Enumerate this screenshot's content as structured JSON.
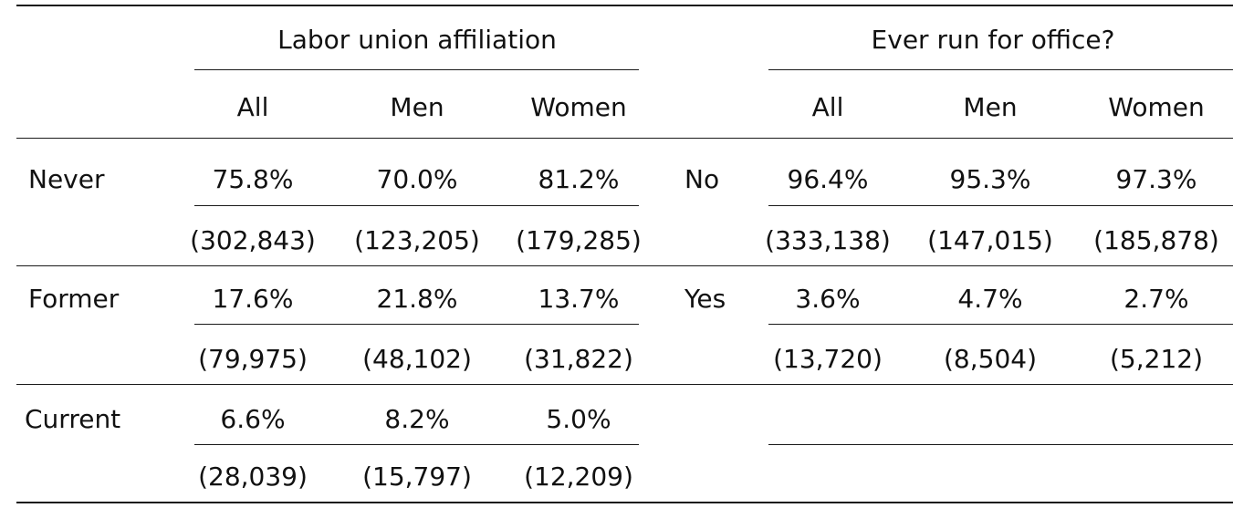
{
  "union": {
    "header": "Labor union affiliation",
    "columns": [
      "All",
      "Men",
      "Women"
    ],
    "rows": [
      {
        "label": "Never",
        "pct": [
          "75.8%",
          "70.0%",
          "81.2%"
        ],
        "n": [
          "(302,843)",
          "(123,205)",
          "(179,285)"
        ]
      },
      {
        "label": "Former",
        "pct": [
          "17.6%",
          "21.8%",
          "13.7%"
        ],
        "n": [
          "(79,975)",
          "(48,102)",
          "(31,822)"
        ]
      },
      {
        "label": "Current",
        "pct": [
          "6.6%",
          "8.2%",
          "5.0%"
        ],
        "n": [
          "(28,039)",
          "(15,797)",
          "(12,209)"
        ]
      }
    ]
  },
  "office": {
    "header": "Ever run for office?",
    "columns": [
      "All",
      "Men",
      "Women"
    ],
    "rows": [
      {
        "label": "No",
        "pct": [
          "96.4%",
          "95.3%",
          "97.3%"
        ],
        "n": [
          "(333,138)",
          "(147,015)",
          "(185,878)"
        ]
      },
      {
        "label": "Yes",
        "pct": [
          "3.6%",
          "4.7%",
          "2.7%"
        ],
        "n": [
          "(13,720)",
          "(8,504)",
          "(5,212)"
        ]
      }
    ]
  }
}
